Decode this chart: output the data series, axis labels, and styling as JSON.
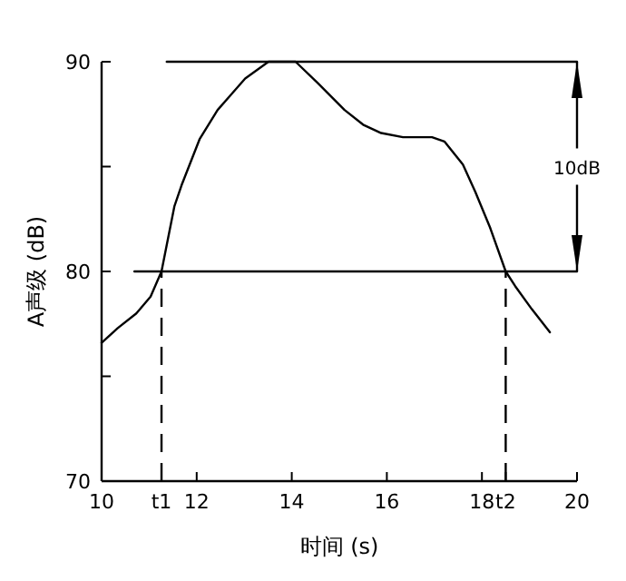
{
  "chart_data": {
    "type": "line",
    "xlabel": "时间 (s)",
    "ylabel": "A声级 (dB)",
    "xlim": [
      10,
      20
    ],
    "ylim": [
      70,
      90
    ],
    "xticks": [
      10,
      {
        "value": 11.26,
        "label": "t1"
      },
      12,
      14,
      16,
      18,
      {
        "value": 18.5,
        "label": "t2"
      },
      20
    ],
    "yticks": [
      70,
      {
        "value": 75,
        "label": null
      },
      80,
      {
        "value": 85,
        "label": null
      },
      90
    ],
    "grid": false,
    "marker": "none",
    "series": [
      {
        "color": "#000000",
        "line_style": "solid",
        "x": [
          10,
          10.34,
          10.73,
          11.03,
          11.26,
          11.53,
          11.68,
          12.06,
          12.44,
          13.02,
          13.51,
          14.08,
          14.54,
          15.11,
          15.5,
          15.88,
          16.34,
          16.95,
          17.21,
          17.6,
          17.86,
          18.17,
          18.5,
          18.7,
          19.05,
          19.43
        ],
        "values": [
          76.6,
          77.3,
          78.0,
          78.8,
          80,
          83.1,
          84.1,
          86.3,
          87.7,
          89.2,
          90,
          90,
          89.0,
          87.7,
          87.0,
          86.6,
          86.4,
          86.4,
          86.2,
          85.1,
          83.8,
          82.1,
          80,
          79.3,
          78.2,
          77.1
        ]
      },
      {
        "color": "#000000",
        "line_style": "solid",
        "x": [
          11.37,
          20
        ],
        "values": [
          90,
          90
        ]
      },
      {
        "color": "#000000",
        "line_style": "solid",
        "x": [
          10.69,
          20
        ],
        "values": [
          80,
          80
        ]
      }
    ],
    "ref_lines": [
      {
        "axis": "x",
        "value": 11.26,
        "label": null,
        "color": "#000000",
        "line_style": "dashed"
      },
      {
        "axis": "x",
        "value": 18.5,
        "label": null,
        "color": "#000000",
        "line_style": "dashed"
      }
    ],
    "annotations": [
      "10dB"
    ]
  }
}
